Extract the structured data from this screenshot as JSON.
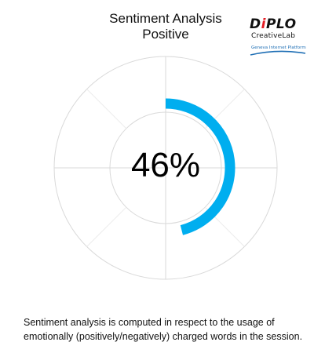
{
  "chart": {
    "title": "Sentiment Analysis",
    "subtitle": "Positive",
    "value_label": "46%"
  },
  "logo": {
    "main_prefix": "D",
    "main_accent": "i",
    "main_suffix": "PLO",
    "sub": "CreativeLab",
    "tag": "Geneva Internet Platform"
  },
  "caption": {
    "line1": "Sentiment analysis is computed in respect to the usage of",
    "line2": "emotionally (positively/negatively) charged words in the session."
  },
  "colors": {
    "arc": "#00aeef",
    "grid": "#d9d9d9",
    "text": "#111111",
    "logo_accent": "#e31b23",
    "logo_tag": "#1f6fb5"
  },
  "chart_data": {
    "type": "radial-progress",
    "title": "Sentiment Analysis",
    "subtitle": "Positive",
    "value": 46,
    "max": 100,
    "unit": "%",
    "label": "46%",
    "grid": true
  }
}
